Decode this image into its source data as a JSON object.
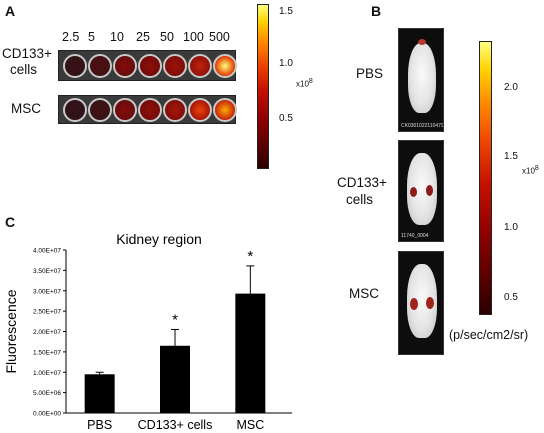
{
  "panel_a": {
    "label": "A",
    "concentrations": [
      "2.5",
      "5",
      "10",
      "25",
      "50",
      "100",
      "500"
    ],
    "rows": [
      {
        "label_line1": "CD133+",
        "label_line2": "cells",
        "intensity": [
          0.05,
          0.12,
          0.3,
          0.35,
          0.42,
          0.55,
          1.0
        ]
      },
      {
        "label_line1": "MSC",
        "label_line2": "",
        "intensity": [
          0.03,
          0.08,
          0.3,
          0.35,
          0.45,
          0.7,
          0.85
        ]
      }
    ],
    "colorbar": {
      "ticks": [
        "1.5",
        "1.0",
        "0.5"
      ],
      "scale_base": "x10",
      "scale_exp": "8"
    }
  },
  "panel_b": {
    "label": "B",
    "groups": [
      {
        "label_line1": "PBS",
        "label_line2": "",
        "caption": "CK0301022110479"
      },
      {
        "label_line1": "CD133+",
        "label_line2": "cells",
        "caption": "11740_0004"
      },
      {
        "label_line1": "MSC",
        "label_line2": "",
        "caption": ""
      }
    ],
    "colorbar": {
      "ticks": [
        "2.0",
        "1.5",
        "1.0",
        "0.5"
      ],
      "scale_base": "x10",
      "scale_exp": "8",
      "unit": "(p/sec/cm2/sr)"
    }
  },
  "panel_c": {
    "label": "C"
  },
  "chart_data": {
    "type": "bar",
    "title": "Kidney region",
    "ylabel": "Fluorescence",
    "xlabel": "",
    "categories": [
      "PBS",
      "CD133+ cells",
      "MSC"
    ],
    "values": [
      9500000,
      16500000,
      29300000
    ],
    "errors": [
      500000,
      4000000,
      6800000
    ],
    "significance": [
      "",
      "*",
      "*"
    ],
    "ylim": [
      0,
      40000000
    ],
    "yticks": [
      "0.00E+00",
      "5.00E+06",
      "1.00E+07",
      "1.50E+07",
      "2.00E+07",
      "2.50E+07",
      "3.00E+07",
      "3.50E+07",
      "4.00E+07"
    ],
    "bar_color": "#000000",
    "grid": false
  }
}
